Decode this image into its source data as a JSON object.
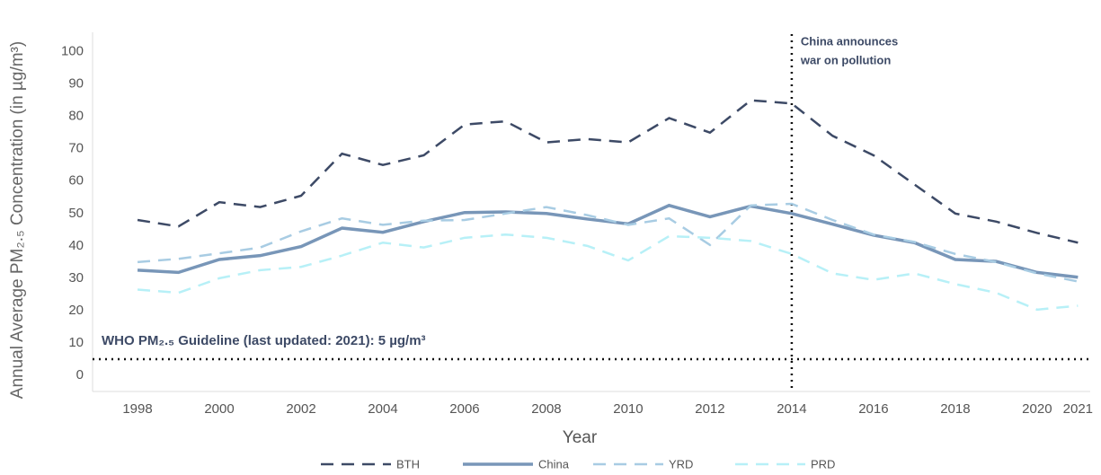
{
  "chart_data": {
    "type": "line",
    "y_label": "Annual Average PM₂.₅ Concentration (in µg/m³)",
    "x_label": "Year",
    "x": [
      1998,
      1999,
      2000,
      2001,
      2002,
      2003,
      2004,
      2005,
      2006,
      2007,
      2008,
      2009,
      2010,
      2011,
      2012,
      2013,
      2014,
      2015,
      2016,
      2017,
      2018,
      2019,
      2020,
      2021
    ],
    "series": [
      {
        "name": "BTH",
        "color": "#3d4a66",
        "style": "dashed",
        "values": [
          48,
          46,
          53.5,
          52,
          55.5,
          68.5,
          65,
          68,
          77.5,
          78.5,
          72,
          73,
          72,
          79.5,
          75,
          85,
          84,
          74,
          68,
          59,
          50,
          47.5,
          44,
          41
        ]
      },
      {
        "name": "China",
        "color": "#7896b8",
        "style": "solid",
        "values": [
          32.5,
          31.8,
          35.8,
          37,
          39.8,
          45.5,
          44.2,
          47.5,
          50.3,
          50.5,
          50,
          48.3,
          46.8,
          52.5,
          49,
          52.3,
          50,
          46.7,
          43.3,
          41,
          35.8,
          35.2,
          31.8,
          30.3
        ]
      },
      {
        "name": "YRD",
        "color": "#a8cce3",
        "style": "dashed",
        "values": [
          35,
          36,
          37.7,
          39.5,
          44.5,
          48.5,
          46.5,
          47.8,
          48,
          50,
          52,
          49.5,
          46.5,
          48.5,
          40.3,
          52.5,
          53,
          48,
          43.5,
          41.2,
          37.5,
          35,
          31.5,
          29
        ]
      },
      {
        "name": "PRD",
        "color": "#b7f0f7",
        "style": "dashed",
        "values": [
          26.5,
          25.5,
          30,
          32.5,
          33.5,
          37,
          41,
          39.5,
          42.5,
          43.5,
          42.5,
          40,
          35.5,
          43,
          42.5,
          41.5,
          37.5,
          31.5,
          29.5,
          31.5,
          28.2,
          25.5,
          20.3,
          21.5
        ]
      }
    ],
    "xlim": [
      1996.9,
      2021.3
    ],
    "xticks": [
      1998,
      2000,
      2002,
      2004,
      2006,
      2008,
      2010,
      2012,
      2014,
      2016,
      2018,
      2020,
      2021
    ],
    "ylim": [
      -5,
      106
    ],
    "yticks": [
      0,
      10,
      20,
      30,
      40,
      50,
      60,
      70,
      80,
      90,
      100
    ],
    "guideline": {
      "value": 5,
      "label": "WHO PM₂.₅ Guideline (last updated: 2021): 5 µg/m³"
    },
    "event": {
      "x": 2014,
      "lines": [
        "China announces",
        "war on pollution"
      ]
    },
    "legend": "bottom"
  }
}
